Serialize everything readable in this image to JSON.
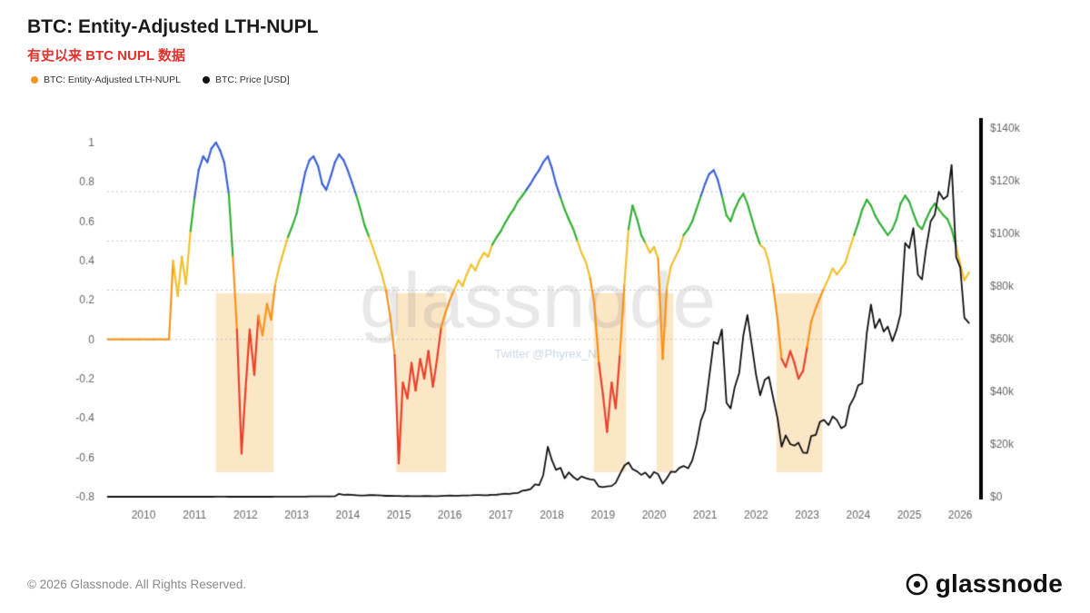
{
  "header": {
    "title": "BTC: Entity-Adjusted LTH-NUPL",
    "subtitle": "有史以来 BTC NUPL 数据",
    "legend": [
      {
        "label": "BTC: Entity-Adjusted LTH-NUPL",
        "color": "#f7941d"
      },
      {
        "label": "BTC: Price [USD]",
        "color": "#111111"
      }
    ]
  },
  "watermark": {
    "text": "glassnode",
    "sub": "Twitter @Phyrex_Ni"
  },
  "footer": {
    "copyright": "© 2026 Glassnode. All Rights Reserved.",
    "brand": "glassnode"
  },
  "chart_data": {
    "type": "line",
    "title": "BTC: Entity-Adjusted LTH-NUPL",
    "x_ticks": [
      2010,
      2011,
      2012,
      2013,
      2014,
      2015,
      2016,
      2017,
      2018,
      2019,
      2020,
      2021,
      2022,
      2023,
      2024,
      2025,
      2026
    ],
    "left_axis": {
      "range": [
        -0.8,
        1.0
      ],
      "ticks": [
        1,
        0.8,
        0.6,
        0.4,
        0.2,
        0,
        -0.2,
        -0.4,
        -0.6,
        -0.8
      ]
    },
    "right_axis": {
      "range": [
        0,
        140000
      ],
      "ticks": [
        {
          "value": 0,
          "label": "$0"
        },
        {
          "value": 20000,
          "label": "$20k"
        },
        {
          "value": 40000,
          "label": "$40k"
        },
        {
          "value": 60000,
          "label": "$60k"
        },
        {
          "value": 80000,
          "label": "$80k"
        },
        {
          "value": 100000,
          "label": "$100k"
        },
        {
          "value": 120000,
          "label": "$120k"
        },
        {
          "value": 140000,
          "label": "$140k"
        }
      ]
    },
    "gridlines": [
      0.75,
      0.5,
      0.25,
      0
    ],
    "thresholds": {
      "blue": 0.75,
      "green": 0.5,
      "yellow": 0.25,
      "orange": 0
    },
    "colors": {
      "blue": "#3d63d9",
      "green": "#33b135",
      "yellow": "#f2c12e",
      "orange": "#f7941d",
      "red": "#e8432c",
      "price": "#101010",
      "band": "#fbe6c6",
      "grid": "#c5c5c5",
      "axis_text": "#666666"
    },
    "bands": {
      "nupl_top": 0.235,
      "nupl_bottom": -0.675,
      "ranges": [
        [
          2011.42,
          2012.55
        ],
        [
          2014.95,
          2015.93
        ],
        [
          2018.82,
          2019.45
        ],
        [
          2020.05,
          2020.38
        ],
        [
          2022.4,
          2023.3
        ]
      ]
    },
    "x": [
      2009.3,
      2009.6,
      2009.9,
      2010.2,
      2010.5,
      2010.58,
      2010.67,
      2010.75,
      2010.83,
      2010.92,
      2011.0,
      2011.08,
      2011.17,
      2011.25,
      2011.33,
      2011.42,
      2011.5,
      2011.58,
      2011.67,
      2011.75,
      2011.83,
      2011.92,
      2012.0,
      2012.08,
      2012.17,
      2012.25,
      2012.33,
      2012.42,
      2012.5,
      2012.58,
      2012.67,
      2012.75,
      2012.83,
      2012.92,
      2013.0,
      2013.08,
      2013.17,
      2013.25,
      2013.33,
      2013.42,
      2013.5,
      2013.58,
      2013.67,
      2013.75,
      2013.83,
      2013.92,
      2014.0,
      2014.08,
      2014.17,
      2014.25,
      2014.33,
      2014.42,
      2014.5,
      2014.58,
      2014.67,
      2014.75,
      2014.83,
      2014.92,
      2015.0,
      2015.08,
      2015.17,
      2015.25,
      2015.33,
      2015.42,
      2015.5,
      2015.58,
      2015.67,
      2015.75,
      2015.83,
      2015.92,
      2016.0,
      2016.08,
      2016.17,
      2016.25,
      2016.33,
      2016.42,
      2016.5,
      2016.58,
      2016.67,
      2016.75,
      2016.83,
      2016.92,
      2017.0,
      2017.08,
      2017.17,
      2017.25,
      2017.33,
      2017.42,
      2017.5,
      2017.58,
      2017.67,
      2017.75,
      2017.83,
      2017.92,
      2018.0,
      2018.08,
      2018.17,
      2018.25,
      2018.33,
      2018.42,
      2018.5,
      2018.58,
      2018.67,
      2018.75,
      2018.83,
      2018.92,
      2019.0,
      2019.08,
      2019.17,
      2019.25,
      2019.33,
      2019.42,
      2019.5,
      2019.58,
      2019.67,
      2019.75,
      2019.83,
      2019.92,
      2020.0,
      2020.08,
      2020.17,
      2020.25,
      2020.33,
      2020.42,
      2020.5,
      2020.58,
      2020.67,
      2020.75,
      2020.83,
      2020.92,
      2021.0,
      2021.08,
      2021.17,
      2021.25,
      2021.33,
      2021.42,
      2021.5,
      2021.58,
      2021.67,
      2021.75,
      2021.83,
      2021.92,
      2022.0,
      2022.08,
      2022.17,
      2022.25,
      2022.33,
      2022.42,
      2022.5,
      2022.58,
      2022.67,
      2022.75,
      2022.83,
      2022.92,
      2023.0,
      2023.08,
      2023.17,
      2023.25,
      2023.33,
      2023.42,
      2023.5,
      2023.58,
      2023.67,
      2023.75,
      2023.83,
      2023.92,
      2024.0,
      2024.08,
      2024.17,
      2024.25,
      2024.33,
      2024.42,
      2024.5,
      2024.58,
      2024.67,
      2024.75,
      2024.83,
      2024.92,
      2025.0,
      2025.08,
      2025.17,
      2025.25,
      2025.33,
      2025.42,
      2025.5,
      2025.58,
      2025.67,
      2025.75,
      2025.83,
      2025.92,
      2026.0,
      2026.08,
      2026.17
    ],
    "series": [
      {
        "name": "BTC: Entity-Adjusted LTH-NUPL",
        "axis": "left",
        "values": [
          0,
          0,
          0,
          0,
          0,
          0.4,
          0.22,
          0.42,
          0.28,
          0.55,
          0.72,
          0.86,
          0.93,
          0.9,
          0.97,
          1.0,
          0.96,
          0.9,
          0.74,
          0.42,
          0.05,
          -0.58,
          -0.25,
          0.05,
          -0.18,
          0.12,
          0.02,
          0.18,
          0.1,
          0.28,
          0.38,
          0.45,
          0.52,
          0.58,
          0.64,
          0.74,
          0.85,
          0.91,
          0.93,
          0.88,
          0.79,
          0.76,
          0.83,
          0.9,
          0.94,
          0.91,
          0.86,
          0.8,
          0.73,
          0.66,
          0.58,
          0.52,
          0.46,
          0.4,
          0.33,
          0.25,
          0.12,
          -0.08,
          -0.63,
          -0.22,
          -0.3,
          -0.12,
          -0.26,
          -0.1,
          -0.2,
          -0.06,
          -0.24,
          -0.1,
          0.06,
          0.14,
          0.2,
          0.25,
          0.3,
          0.27,
          0.33,
          0.38,
          0.35,
          0.4,
          0.44,
          0.42,
          0.48,
          0.52,
          0.55,
          0.59,
          0.63,
          0.66,
          0.7,
          0.73,
          0.76,
          0.79,
          0.83,
          0.86,
          0.9,
          0.93,
          0.87,
          0.79,
          0.72,
          0.66,
          0.61,
          0.56,
          0.5,
          0.44,
          0.39,
          0.31,
          0.18,
          -0.12,
          -0.28,
          -0.47,
          -0.22,
          -0.35,
          -0.08,
          0.28,
          0.56,
          0.68,
          0.61,
          0.53,
          0.49,
          0.44,
          0.47,
          0.41,
          -0.1,
          0.26,
          0.37,
          0.42,
          0.46,
          0.53,
          0.56,
          0.6,
          0.66,
          0.73,
          0.79,
          0.84,
          0.86,
          0.81,
          0.73,
          0.63,
          0.6,
          0.66,
          0.71,
          0.74,
          0.69,
          0.61,
          0.54,
          0.48,
          0.46,
          0.39,
          0.28,
          0.1,
          -0.1,
          -0.14,
          -0.06,
          -0.12,
          -0.2,
          -0.16,
          -0.04,
          0.09,
          0.16,
          0.21,
          0.26,
          0.31,
          0.36,
          0.33,
          0.36,
          0.39,
          0.46,
          0.53,
          0.59,
          0.66,
          0.71,
          0.68,
          0.63,
          0.59,
          0.56,
          0.53,
          0.56,
          0.61,
          0.69,
          0.73,
          0.7,
          0.64,
          0.58,
          0.56,
          0.61,
          0.66,
          0.69,
          0.66,
          0.63,
          0.61,
          0.56,
          0.47,
          0.38,
          0.3,
          0.34
        ]
      },
      {
        "name": "BTC: Price [USD]",
        "axis": "right",
        "values": [
          0,
          0,
          0,
          0,
          0.1,
          0.06,
          0.07,
          0.2,
          0.3,
          0.25,
          0.3,
          1,
          0.9,
          1.8,
          5.5,
          17,
          15,
          11,
          5,
          3.3,
          2.5,
          4.7,
          5.3,
          5,
          4.9,
          5,
          5.1,
          5.4,
          6.7,
          9.4,
          11,
          12.4,
          11,
          13.4,
          13.5,
          20,
          34,
          135,
          117,
          107,
          97,
          103,
          128,
          196,
          1100,
          750,
          800,
          700,
          565,
          450,
          445,
          600,
          640,
          590,
          480,
          340,
          375,
          320,
          315,
          222,
          255,
          245,
          235,
          230,
          260,
          280,
          230,
          240,
          315,
          360,
          430,
          375,
          415,
          450,
          450,
          530,
          670,
          625,
          575,
          610,
          700,
          770,
          960,
          1190,
          1080,
          1350,
          1400,
          2300,
          2500,
          2870,
          4700,
          4400,
          8200,
          19000,
          13900,
          10200,
          11000,
          7000,
          9250,
          7500,
          6400,
          7700,
          7000,
          6600,
          6400,
          3900,
          3700,
          3900,
          4100,
          5300,
          8500,
          11800,
          13000,
          10500,
          9600,
          8300,
          9200,
          7200,
          9400,
          8600,
          5000,
          7000,
          9500,
          9400,
          11000,
          11700,
          10800,
          13800,
          19700,
          29000,
          33000,
          45200,
          58800,
          58000,
          63500,
          35700,
          33500,
          41500,
          47100,
          61300,
          69000,
          57000,
          46200,
          38500,
          44400,
          45500,
          38000,
          29800,
          19000,
          23300,
          20000,
          19400,
          20500,
          16800,
          16600,
          23100,
          23500,
          28400,
          29200,
          27200,
          30500,
          29200,
          26000,
          27000,
          34500,
          37700,
          42300,
          43100,
          62400,
          73000,
          64000,
          67500,
          62700,
          64600,
          59100,
          63300,
          69400,
          96400,
          94400,
          102000,
          84300,
          82500,
          94200,
          104600,
          107100,
          115800,
          113000,
          114200,
          126000,
          91000,
          87000,
          68000,
          66000
        ]
      }
    ]
  }
}
